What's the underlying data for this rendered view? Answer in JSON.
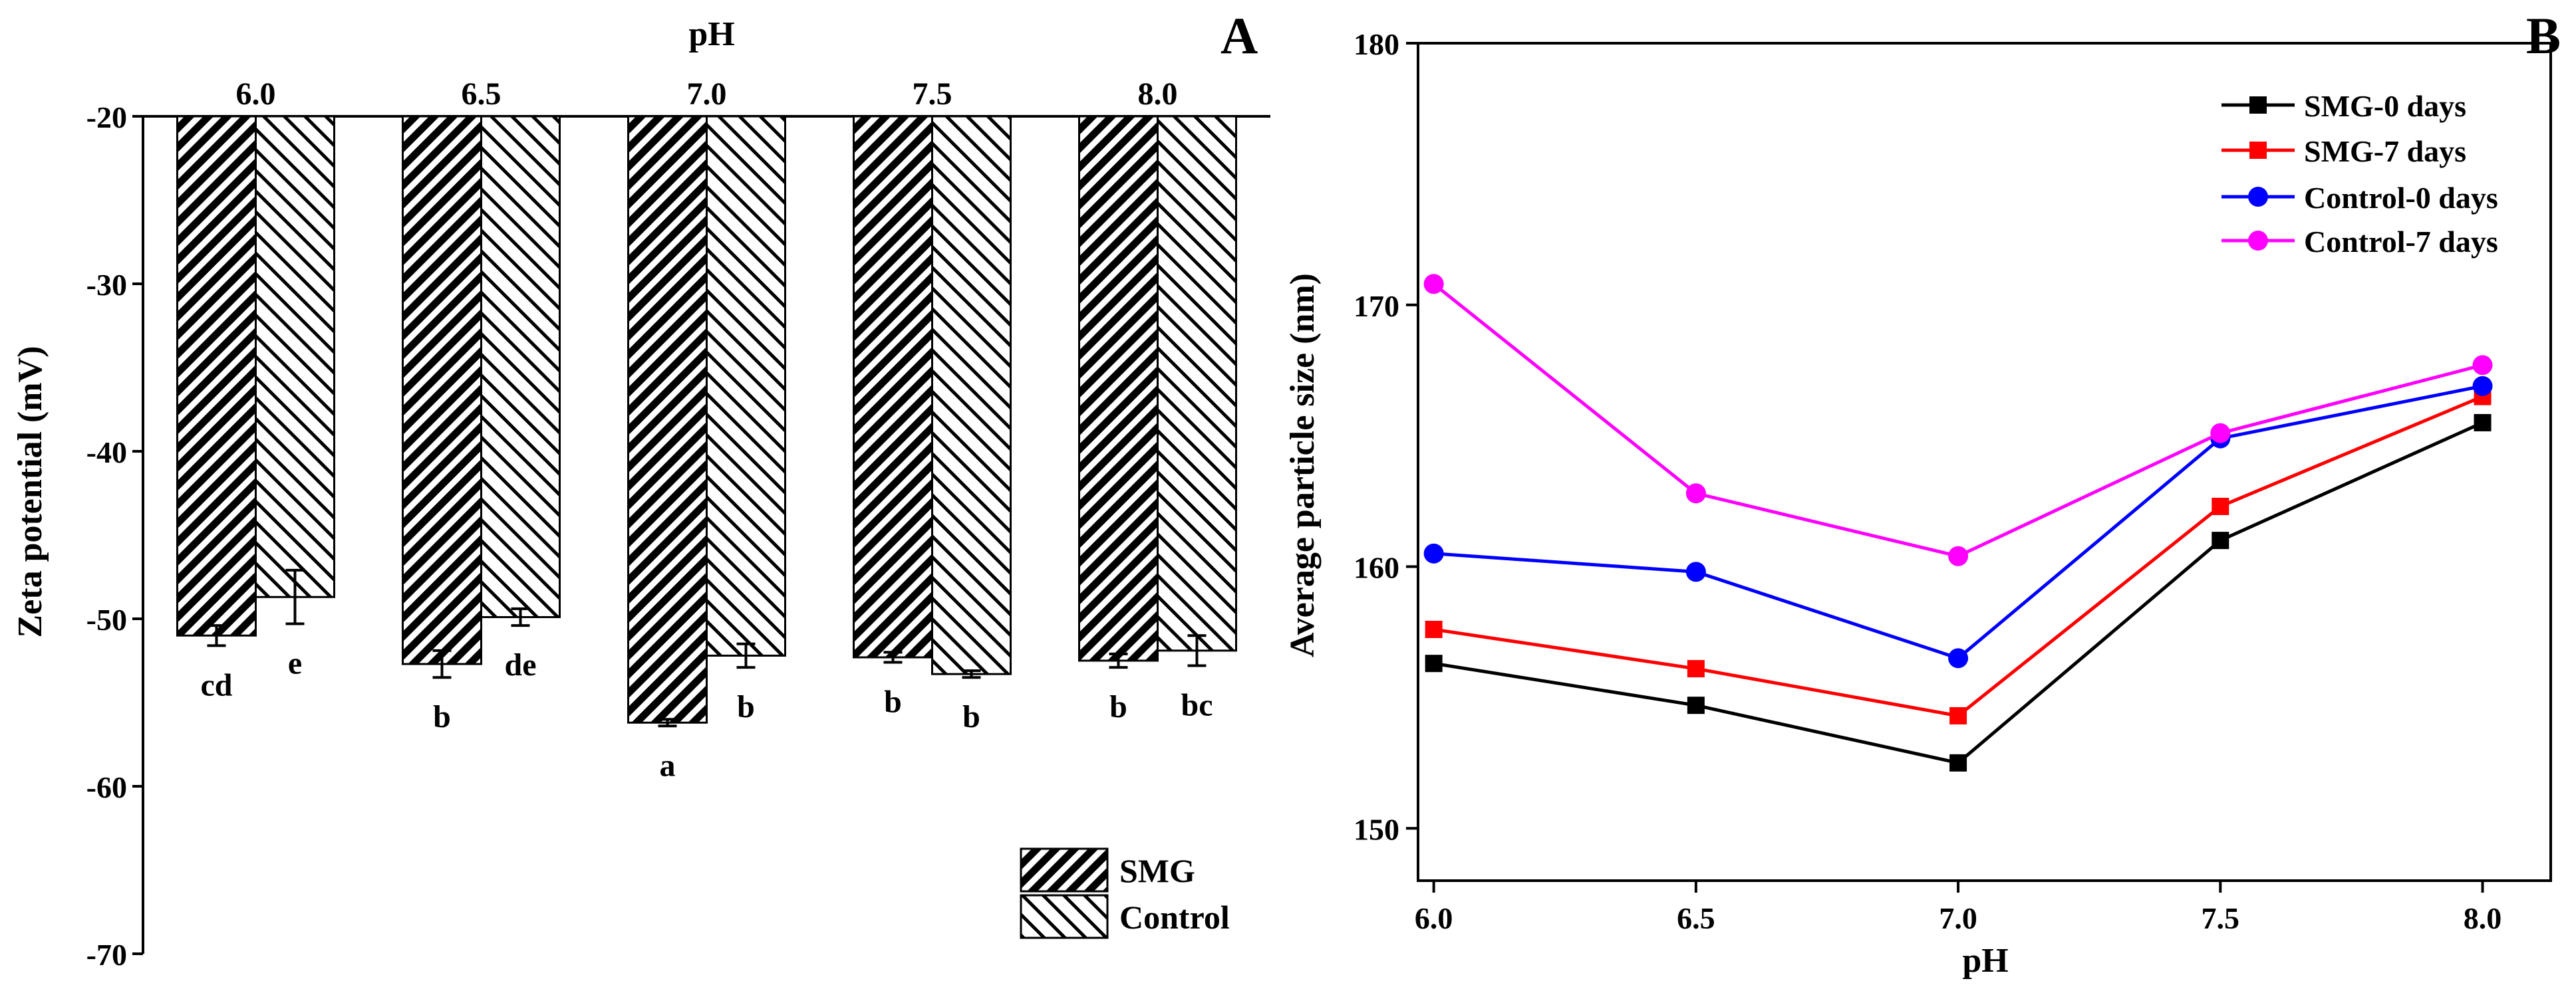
{
  "chart_data": [
    {
      "panel": "A",
      "type": "bar",
      "title": "",
      "xlabel": "pH",
      "ylabel": "Zeta potential (mV)",
      "categories": [
        "6.0",
        "6.5",
        "7.0",
        "7.5",
        "8.0"
      ],
      "ylim": [
        -70,
        -20
      ],
      "yticks": [
        -20,
        -30,
        -40,
        -50,
        -60,
        -70
      ],
      "x_axis_position": "top",
      "series": [
        {
          "name": "SMG",
          "values": [
            -51.0,
            -52.7,
            -56.2,
            -52.3,
            -52.5
          ],
          "errors": [
            0.6,
            0.8,
            0.2,
            0.3,
            0.4
          ],
          "letters": [
            "cd",
            "b",
            "a",
            "b",
            "b"
          ],
          "pattern": "dense-diagonal"
        },
        {
          "name": "Control",
          "values": [
            -48.7,
            -49.9,
            -52.2,
            -53.3,
            -51.9
          ],
          "errors": [
            1.6,
            0.5,
            0.7,
            0.2,
            0.9
          ],
          "letters": [
            "e",
            "de",
            "b",
            "b",
            "bc"
          ],
          "pattern": "sparse-back-diagonal"
        }
      ],
      "legend_position": "bottom-right"
    },
    {
      "panel": "B",
      "type": "line",
      "title": "",
      "xlabel": "pH",
      "ylabel": "Average particle size (nm)",
      "x": [
        "6.0",
        "6.5",
        "7.0",
        "7.5",
        "8.0"
      ],
      "xlim": [
        5.97,
        8.13
      ],
      "xticks": [
        "6.0",
        "6.5",
        "7.0",
        "7.5",
        "8.0"
      ],
      "ylim": [
        148,
        180
      ],
      "yticks": [
        150,
        160,
        170,
        180
      ],
      "series": [
        {
          "name": "SMG-0 days",
          "values": [
            156.3,
            154.7,
            152.5,
            161.0,
            165.5
          ],
          "color": "#000000",
          "marker": "square"
        },
        {
          "name": "SMG-7 days",
          "values": [
            157.6,
            156.1,
            154.3,
            162.3,
            166.5
          ],
          "color": "#ff0000",
          "marker": "square"
        },
        {
          "name": "Control-0 days",
          "values": [
            160.5,
            159.8,
            156.5,
            164.9,
            166.9
          ],
          "color": "#0000ff",
          "marker": "circle"
        },
        {
          "name": "Control-7 days",
          "values": [
            170.8,
            162.8,
            160.4,
            165.1,
            167.7
          ],
          "color": "#ff00ff",
          "marker": "circle"
        }
      ],
      "legend_position": "top-right"
    }
  ],
  "labels": {
    "panel_a": "A",
    "panel_b": "B"
  }
}
